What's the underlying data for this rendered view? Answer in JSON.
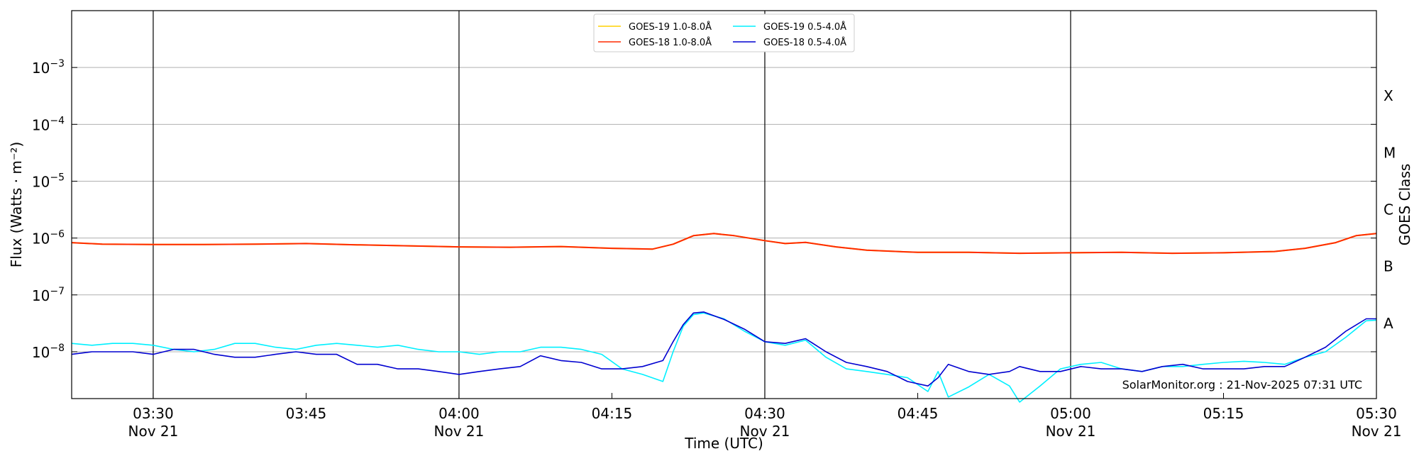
{
  "chart_data": {
    "type": "line",
    "xlabel": "Time (UTC)",
    "ylabel": "Flux (Watts · m⁻²)",
    "right_label": "GOES Class",
    "watermark": "SolarMonitor.org : 21-Nov-2025 07:31 UTC",
    "x_range": [
      "03:22",
      "05:30"
    ],
    "y_range": [
      1.5e-09,
      0.01
    ],
    "y_scale": "log",
    "grid": "horizontal at decades",
    "legend_position": "top-center",
    "x_ticks": [
      {
        "time": "03:30",
        "line1": "03:30",
        "line2": "Nov 21",
        "major": true
      },
      {
        "time": "03:45",
        "line1": "03:45",
        "line2": "",
        "major": false
      },
      {
        "time": "04:00",
        "line1": "04:00",
        "line2": "Nov 21",
        "major": true
      },
      {
        "time": "04:15",
        "line1": "04:15",
        "line2": "",
        "major": false
      },
      {
        "time": "04:30",
        "line1": "04:30",
        "line2": "Nov 21",
        "major": true
      },
      {
        "time": "04:45",
        "line1": "04:45",
        "line2": "",
        "major": false
      },
      {
        "time": "05:00",
        "line1": "05:00",
        "line2": "Nov 21",
        "major": true
      },
      {
        "time": "05:15",
        "line1": "05:15",
        "line2": "",
        "major": false
      },
      {
        "time": "05:30",
        "line1": "05:30",
        "line2": "Nov 21",
        "major": true
      }
    ],
    "y_ticks": [
      {
        "exp": -8,
        "base": "10",
        "sup": "−8"
      },
      {
        "exp": -7,
        "base": "10",
        "sup": "−7"
      },
      {
        "exp": -6,
        "base": "10",
        "sup": "−6"
      },
      {
        "exp": -5,
        "base": "10",
        "sup": "−5"
      },
      {
        "exp": -4,
        "base": "10",
        "sup": "−4"
      },
      {
        "exp": -3,
        "base": "10",
        "sup": "−3"
      }
    ],
    "goes_classes": [
      {
        "label": "X",
        "exp": -3.5
      },
      {
        "label": "M",
        "exp": -4.5
      },
      {
        "label": "C",
        "exp": -5.5
      },
      {
        "label": "B",
        "exp": -6.5
      },
      {
        "label": "A",
        "exp": -7.5
      }
    ],
    "series": [
      {
        "name": "GOES-19 1.0-8.0Å",
        "color": "#ffd000",
        "x": [
          "03:22",
          "03:25",
          "03:30",
          "03:35",
          "03:40",
          "03:45",
          "03:50",
          "03:55",
          "04:00",
          "04:05",
          "04:10",
          "04:15",
          "04:19",
          "04:21",
          "04:23",
          "04:25",
          "04:27",
          "04:30",
          "04:32",
          "04:34",
          "04:37",
          "04:40",
          "04:45",
          "04:50",
          "04:55",
          "05:00",
          "05:05",
          "05:10",
          "05:15",
          "05:20",
          "05:23",
          "05:26",
          "05:28",
          "05:30"
        ],
        "values": [
          8.3e-07,
          7.8e-07,
          7.7e-07,
          7.7e-07,
          7.8e-07,
          8e-07,
          7.6e-07,
          7.3e-07,
          7e-07,
          6.9e-07,
          7.1e-07,
          6.6e-07,
          6.4e-07,
          7.8e-07,
          1.1e-06,
          1.2e-06,
          1.1e-06,
          9e-07,
          8e-07,
          8.4e-07,
          7e-07,
          6.1e-07,
          5.6e-07,
          5.6e-07,
          5.4e-07,
          5.5e-07,
          5.6e-07,
          5.4e-07,
          5.5e-07,
          5.8e-07,
          6.6e-07,
          8.3e-07,
          1.1e-06,
          1.2e-06
        ]
      },
      {
        "name": "GOES-18 1.0-8.0Å",
        "color": "#ff2a00",
        "x": [
          "03:22",
          "03:25",
          "03:30",
          "03:35",
          "03:40",
          "03:45",
          "03:50",
          "03:55",
          "04:00",
          "04:05",
          "04:10",
          "04:15",
          "04:19",
          "04:21",
          "04:23",
          "04:25",
          "04:27",
          "04:30",
          "04:32",
          "04:34",
          "04:37",
          "04:40",
          "04:45",
          "04:50",
          "04:55",
          "05:00",
          "05:05",
          "05:10",
          "05:15",
          "05:20",
          "05:23",
          "05:26",
          "05:28",
          "05:30"
        ],
        "values": [
          8.3e-07,
          7.8e-07,
          7.7e-07,
          7.7e-07,
          7.8e-07,
          8e-07,
          7.6e-07,
          7.3e-07,
          7e-07,
          6.9e-07,
          7.1e-07,
          6.6e-07,
          6.4e-07,
          7.8e-07,
          1.1e-06,
          1.2e-06,
          1.1e-06,
          9e-07,
          8e-07,
          8.4e-07,
          7e-07,
          6.1e-07,
          5.6e-07,
          5.6e-07,
          5.4e-07,
          5.5e-07,
          5.6e-07,
          5.4e-07,
          5.5e-07,
          5.8e-07,
          6.6e-07,
          8.3e-07,
          1.1e-06,
          1.2e-06
        ]
      },
      {
        "name": "GOES-19 0.5-4.0Å",
        "color": "#00f0ff",
        "x": [
          "03:22",
          "03:24",
          "03:26",
          "03:28",
          "03:30",
          "03:32",
          "03:34",
          "03:36",
          "03:38",
          "03:40",
          "03:42",
          "03:44",
          "03:46",
          "03:48",
          "03:50",
          "03:52",
          "03:54",
          "03:56",
          "03:58",
          "04:00",
          "04:02",
          "04:04",
          "04:06",
          "04:08",
          "04:10",
          "04:12",
          "04:14",
          "04:16",
          "04:18",
          "04:20",
          "04:21",
          "04:22",
          "04:23",
          "04:24",
          "04:26",
          "04:28",
          "04:30",
          "04:32",
          "04:34",
          "04:36",
          "04:38",
          "04:40",
          "04:42",
          "04:44",
          "04:46",
          "04:47",
          "04:48",
          "04:50",
          "04:52",
          "04:54",
          "04:55",
          "04:57",
          "04:59",
          "05:01",
          "05:03",
          "05:05",
          "05:07",
          "05:09",
          "05:11",
          "05:13",
          "05:15",
          "05:17",
          "05:19",
          "05:21",
          "05:23",
          "05:25",
          "05:27",
          "05:29",
          "05:30"
        ],
        "values": [
          1.4e-08,
          1.3e-08,
          1.4e-08,
          1.4e-08,
          1.3e-08,
          1.1e-08,
          1e-08,
          1.1e-08,
          1.4e-08,
          1.4e-08,
          1.2e-08,
          1.1e-08,
          1.3e-08,
          1.4e-08,
          1.3e-08,
          1.2e-08,
          1.3e-08,
          1.1e-08,
          1e-08,
          1e-08,
          9e-09,
          1e-08,
          1e-08,
          1.2e-08,
          1.2e-08,
          1.1e-08,
          9e-09,
          5e-09,
          4e-09,
          3e-09,
          1e-08,
          2.8e-08,
          4.5e-08,
          4.8e-08,
          3.8e-08,
          2.3e-08,
          1.5e-08,
          1.3e-08,
          1.6e-08,
          8e-09,
          5e-09,
          4.5e-09,
          4e-09,
          3.5e-09,
          2e-09,
          4.5e-09,
          1.6e-09,
          2.4e-09,
          4e-09,
          2.5e-09,
          1.3e-09,
          2.5e-09,
          5e-09,
          6e-09,
          6.5e-09,
          5e-09,
          4.5e-09,
          5.5e-09,
          5.5e-09,
          6e-09,
          6.5e-09,
          6.8e-09,
          6.5e-09,
          6e-09,
          8e-09,
          1e-08,
          1.8e-08,
          3.5e-08,
          3.6e-08
        ]
      },
      {
        "name": "GOES-18 0.5-4.0Å",
        "color": "#0000d0",
        "x": [
          "03:22",
          "03:24",
          "03:26",
          "03:28",
          "03:30",
          "03:32",
          "03:34",
          "03:36",
          "03:38",
          "03:40",
          "03:42",
          "03:44",
          "03:46",
          "03:48",
          "03:50",
          "03:52",
          "03:54",
          "03:56",
          "03:58",
          "04:00",
          "04:02",
          "04:04",
          "04:06",
          "04:08",
          "04:10",
          "04:12",
          "04:14",
          "04:16",
          "04:18",
          "04:20",
          "04:21",
          "04:22",
          "04:23",
          "04:24",
          "04:26",
          "04:28",
          "04:30",
          "04:32",
          "04:34",
          "04:36",
          "04:38",
          "04:40",
          "04:42",
          "04:44",
          "04:46",
          "04:47",
          "04:48",
          "04:50",
          "04:52",
          "04:54",
          "04:55",
          "04:57",
          "04:59",
          "05:01",
          "05:03",
          "05:05",
          "05:07",
          "05:09",
          "05:11",
          "05:13",
          "05:15",
          "05:17",
          "05:19",
          "05:21",
          "05:23",
          "05:25",
          "05:27",
          "05:29",
          "05:30"
        ],
        "values": [
          9e-09,
          1e-08,
          1e-08,
          1e-08,
          9e-09,
          1.1e-08,
          1.1e-08,
          9e-09,
          8e-09,
          8e-09,
          9e-09,
          1e-08,
          9e-09,
          9e-09,
          6e-09,
          6e-09,
          5e-09,
          5e-09,
          4.5e-09,
          4e-09,
          4.5e-09,
          5e-09,
          5.5e-09,
          8.5e-09,
          7e-09,
          6.5e-09,
          5e-09,
          5e-09,
          5.5e-09,
          7e-09,
          1.5e-08,
          3e-08,
          4.8e-08,
          5e-08,
          3.7e-08,
          2.5e-08,
          1.5e-08,
          1.4e-08,
          1.7e-08,
          1e-08,
          6.5e-09,
          5.5e-09,
          4.5e-09,
          3e-09,
          2.5e-09,
          3.5e-09,
          6e-09,
          4.5e-09,
          4e-09,
          4.5e-09,
          5.5e-09,
          4.5e-09,
          4.5e-09,
          5.5e-09,
          5e-09,
          5e-09,
          4.5e-09,
          5.5e-09,
          6e-09,
          5e-09,
          5e-09,
          5e-09,
          5.5e-09,
          5.5e-09,
          8e-09,
          1.2e-08,
          2.3e-08,
          3.8e-08,
          3.8e-08
        ]
      }
    ]
  }
}
